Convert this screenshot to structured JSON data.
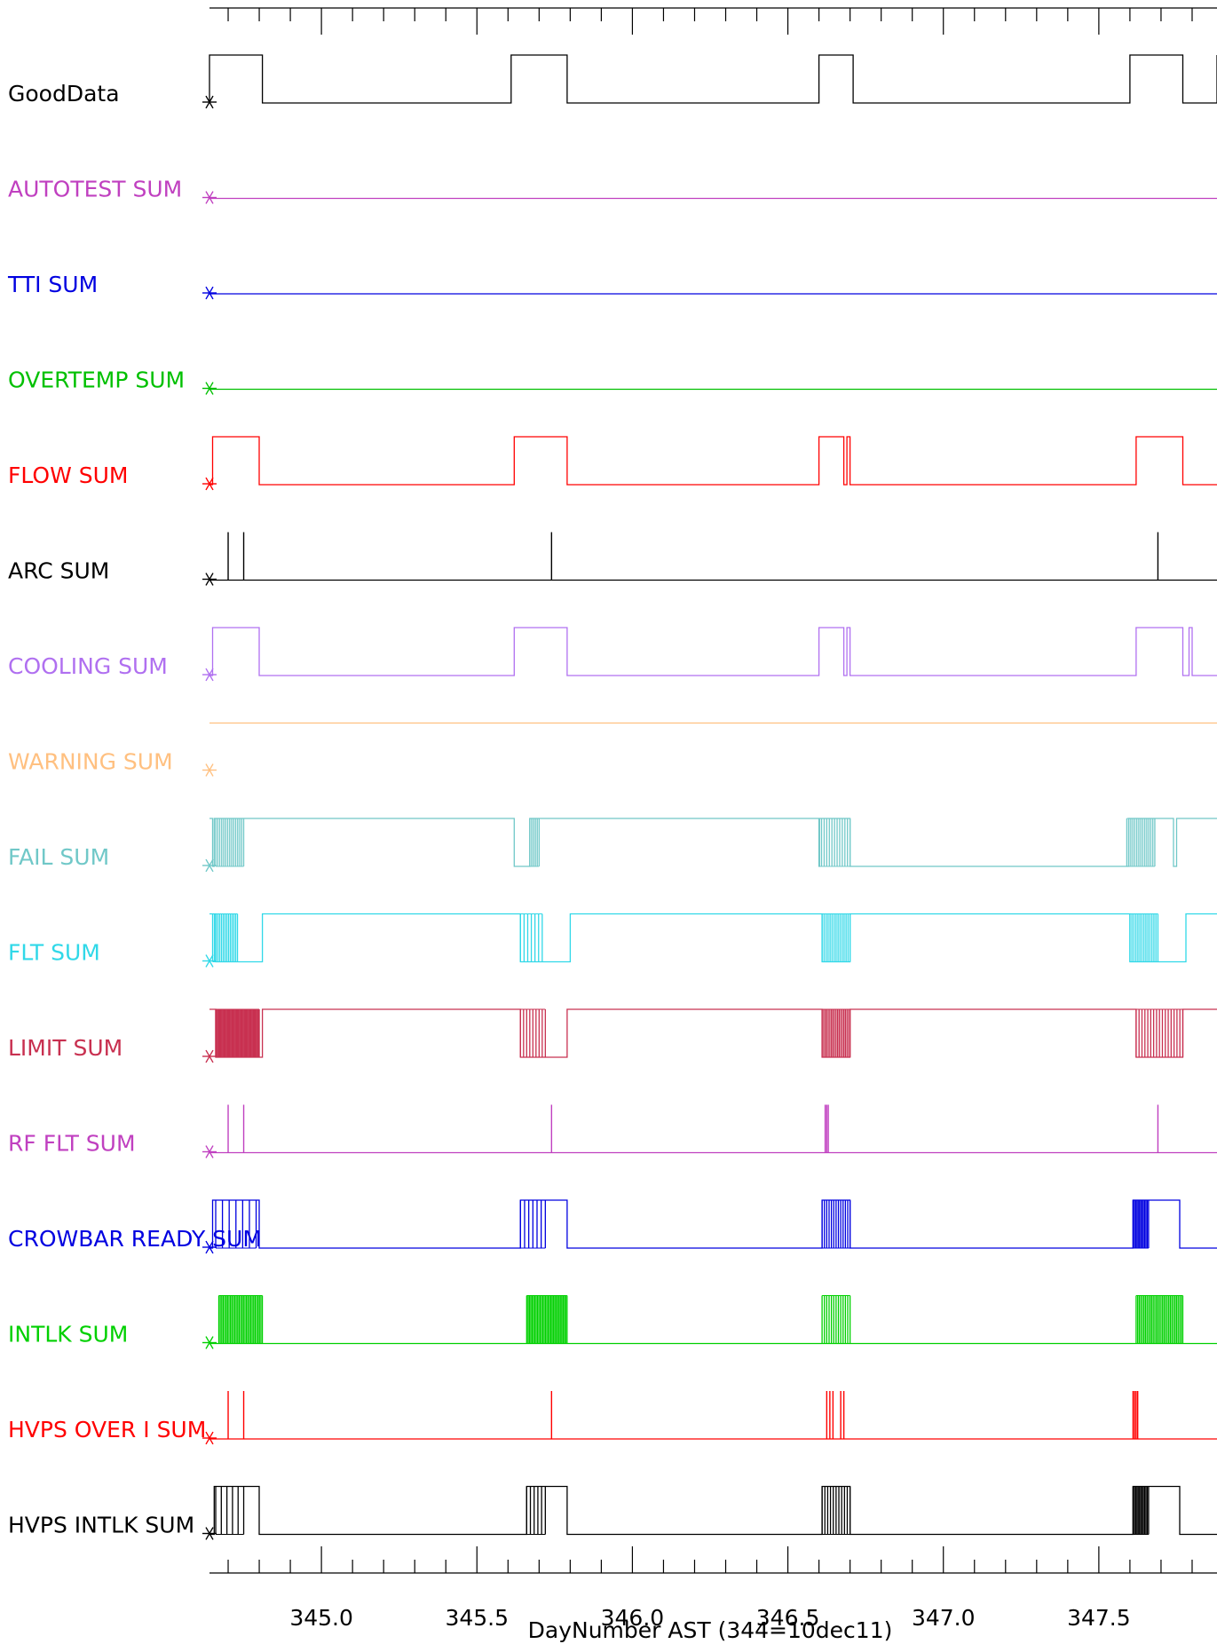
{
  "colors": {
    "background": "#ffffff",
    "axis": "#000000"
  },
  "chart_data": {
    "type": "line",
    "subtype": "digital-timing-diagram",
    "xlabel": "DayNumber AST (344=10dec11)",
    "xlim": [
      344.64,
      347.88
    ],
    "xticks": [
      345.0,
      345.5,
      346.0,
      346.5,
      347.0,
      347.5
    ],
    "xtick_labels": [
      "345.0",
      "345.5",
      "346.0",
      "346.5",
      "347.0",
      "347.5"
    ],
    "grid": false,
    "legend": "none",
    "series": [
      {
        "name": "GoodData",
        "color": "#000000",
        "initial": 0,
        "segments": [
          [
            344.64,
            1
          ],
          [
            344.81,
            0
          ],
          [
            345.61,
            1
          ],
          [
            345.79,
            0
          ],
          [
            346.6,
            1
          ],
          [
            346.71,
            0
          ],
          [
            347.6,
            1
          ],
          [
            347.77,
            0
          ],
          [
            347.89,
            1
          ]
        ]
      },
      {
        "name": "AUTOTEST SUM",
        "color": "#c040c0",
        "initial": 0,
        "segments": [
          [
            344.64,
            0
          ]
        ]
      },
      {
        "name": "TTI SUM",
        "color": "#0000e0",
        "initial": 0,
        "segments": [
          [
            344.64,
            0
          ]
        ]
      },
      {
        "name": "OVERTEMP SUM",
        "color": "#00c000",
        "initial": 0,
        "segments": [
          [
            344.64,
            0
          ]
        ]
      },
      {
        "name": "FLOW SUM",
        "color": "#ff0000",
        "initial": 0,
        "segments": [
          [
            344.65,
            1
          ],
          [
            344.8,
            0
          ],
          [
            345.62,
            1
          ],
          [
            345.79,
            0
          ],
          [
            346.6,
            1
          ],
          [
            346.68,
            0
          ],
          [
            346.69,
            1
          ],
          [
            346.7,
            0
          ],
          [
            347.62,
            1
          ],
          [
            347.77,
            0
          ]
        ]
      },
      {
        "name": "ARC SUM",
        "color": "#000000",
        "initial": 0,
        "segments": [
          [
            344.64,
            0
          ]
        ],
        "spikes": [
          344.7,
          344.75,
          345.74,
          347.69
        ]
      },
      {
        "name": "COOLING SUM",
        "color": "#b070f0",
        "initial": 0,
        "segments": [
          [
            344.65,
            1
          ],
          [
            344.8,
            0
          ],
          [
            345.62,
            1
          ],
          [
            345.79,
            0
          ],
          [
            346.6,
            1
          ],
          [
            346.68,
            0
          ],
          [
            346.69,
            1
          ],
          [
            346.7,
            0
          ],
          [
            347.62,
            1
          ],
          [
            347.77,
            0
          ],
          [
            347.79,
            1
          ],
          [
            347.8,
            0
          ]
        ]
      },
      {
        "name": "WARNING SUM",
        "color": "#ffc080",
        "initial": 1,
        "segments": [
          [
            344.64,
            1
          ]
        ]
      },
      {
        "name": "FAIL SUM",
        "color": "#70c8c8",
        "initial": 1,
        "segments": [
          [
            344.65,
            0
          ],
          [
            344.655,
            1
          ],
          [
            345.62,
            0
          ],
          [
            345.67,
            1
          ],
          [
            346.6,
            0
          ],
          [
            346.602,
            1
          ],
          [
            346.7,
            0
          ],
          [
            347.59,
            0
          ],
          [
            347.596,
            1
          ],
          [
            347.74,
            0
          ],
          [
            347.75,
            1
          ]
        ],
        "burst_regions": [
          [
            344.66,
            344.75,
            14
          ],
          [
            345.67,
            345.7,
            5
          ],
          [
            346.6,
            346.7,
            12
          ],
          [
            347.59,
            347.68,
            14
          ]
        ]
      },
      {
        "name": "FLT SUM",
        "color": "#30d8e8",
        "initial": 1,
        "segments": [
          [
            344.64,
            1
          ],
          [
            344.66,
            0
          ],
          [
            344.81,
            1
          ],
          [
            345.64,
            0
          ],
          [
            345.8,
            1
          ],
          [
            346.61,
            0
          ],
          [
            346.7,
            1
          ],
          [
            347.6,
            0
          ],
          [
            347.78,
            1
          ]
        ],
        "burst_regions": [
          [
            344.65,
            344.73,
            14
          ],
          [
            345.64,
            345.71,
            6
          ],
          [
            346.61,
            346.7,
            14
          ],
          [
            347.6,
            347.69,
            14
          ]
        ]
      },
      {
        "name": "LIMIT SUM",
        "color": "#c83050",
        "initial": 1,
        "segments": [
          [
            344.64,
            1
          ],
          [
            344.66,
            0
          ],
          [
            344.81,
            1
          ],
          [
            345.64,
            0
          ],
          [
            345.79,
            1
          ],
          [
            346.61,
            0
          ],
          [
            346.7,
            1
          ],
          [
            347.62,
            0
          ],
          [
            347.77,
            1
          ]
        ],
        "burst_regions": [
          [
            344.66,
            344.8,
            44
          ],
          [
            345.64,
            345.72,
            8
          ],
          [
            346.61,
            346.7,
            18
          ],
          [
            347.62,
            347.77,
            16
          ]
        ]
      },
      {
        "name": "RF FLT SUM",
        "color": "#c040c0",
        "initial": 0,
        "segments": [
          [
            344.64,
            0
          ]
        ],
        "spikes": [
          344.7,
          344.75,
          345.74,
          346.62,
          346.625,
          346.63,
          347.69
        ]
      },
      {
        "name": "CROWBAR READY SUM",
        "color": "#0000e0",
        "initial": 0,
        "segments": [
          [
            344.65,
            1
          ],
          [
            344.8,
            0
          ],
          [
            345.64,
            1
          ],
          [
            345.79,
            0
          ],
          [
            346.61,
            1
          ],
          [
            346.7,
            0
          ],
          [
            347.61,
            1
          ],
          [
            347.76,
            0
          ]
        ],
        "burst_regions": [
          [
            344.66,
            344.79,
            6
          ],
          [
            345.64,
            345.72,
            6
          ],
          [
            346.61,
            346.7,
            12
          ],
          [
            347.61,
            347.66,
            12
          ]
        ]
      },
      {
        "name": "INTLK SUM",
        "color": "#00d000",
        "initial": 0,
        "segments": [
          [
            344.64,
            0
          ]
        ],
        "burst_regions": [
          [
            344.67,
            344.81,
            30
          ],
          [
            345.66,
            345.79,
            30
          ],
          [
            346.61,
            346.7,
            12
          ],
          [
            347.62,
            347.77,
            30
          ]
        ]
      },
      {
        "name": "HVPS OVER I SUM",
        "color": "#ff0000",
        "initial": 0,
        "segments": [
          [
            344.64,
            0
          ]
        ],
        "spikes": [
          344.7,
          344.75,
          345.74,
          346.625,
          346.635,
          346.645,
          346.67,
          346.68,
          347.61,
          347.615,
          347.62,
          347.625
        ]
      },
      {
        "name": "HVPS INTLK SUM",
        "color": "#000000",
        "initial": 0,
        "segments": [
          [
            344.655,
            1
          ],
          [
            344.8,
            0
          ],
          [
            345.66,
            1
          ],
          [
            345.79,
            0
          ],
          [
            346.61,
            1
          ],
          [
            346.7,
            0
          ],
          [
            347.61,
            1
          ],
          [
            347.76,
            0
          ]
        ],
        "burst_regions": [
          [
            344.66,
            344.75,
            5
          ],
          [
            345.66,
            345.72,
            5
          ],
          [
            346.61,
            346.7,
            10
          ],
          [
            347.61,
            347.66,
            12
          ]
        ]
      }
    ]
  }
}
